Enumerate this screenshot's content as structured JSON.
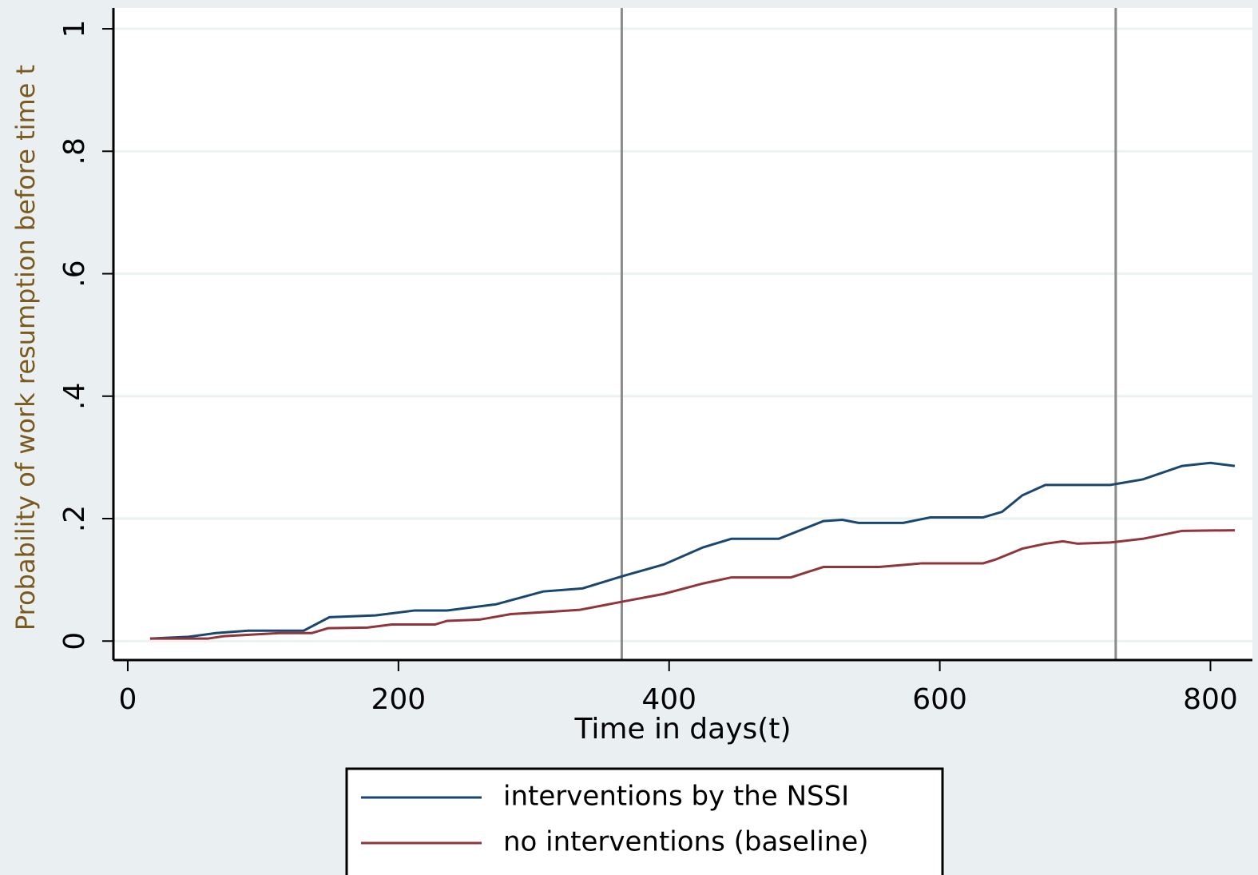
{
  "chart_data": {
    "type": "line",
    "xlabel": "Time in days(t)",
    "ylabel": "Probability of work resumption before time t",
    "xlim": [
      -10.6,
      831
    ],
    "ylim": [
      -0.031,
      1.034
    ],
    "xticks": [
      0,
      200,
      400,
      600,
      800
    ],
    "yticks": [
      0,
      {
        "value": 0.2,
        "label": ".2"
      },
      {
        "value": 0.4,
        "label": ".4"
      },
      {
        "value": 0.6,
        "label": ".6"
      },
      {
        "value": 0.8,
        "label": ".8"
      },
      1
    ],
    "xlines": [
      365,
      730
    ],
    "grid": true,
    "legend": "bottom",
    "series": [
      {
        "name": "interventions by the NSSI",
        "color": "#1a476f",
        "x": [
          16.5,
          45,
          65,
          89,
          130,
          149,
          183,
          212,
          236,
          272,
          307,
          336,
          367,
          396,
          425,
          446,
          481,
          514,
          528,
          540,
          573,
          593,
          632,
          646,
          661,
          678,
          726,
          750,
          779,
          800,
          818
        ],
        "values": [
          0.004,
          0.007,
          0.013,
          0.017,
          0.017,
          0.039,
          0.042,
          0.05,
          0.05,
          0.06,
          0.081,
          0.086,
          0.107,
          0.125,
          0.153,
          0.167,
          0.167,
          0.196,
          0.198,
          0.193,
          0.193,
          0.202,
          0.202,
          0.211,
          0.238,
          0.255,
          0.255,
          0.264,
          0.286,
          0.291,
          0.286
        ]
      },
      {
        "name": "no interventions (baseline)",
        "color": "#90353b",
        "x": [
          16.5,
          59,
          71,
          112,
          136,
          148,
          177,
          195,
          227,
          236,
          260,
          283,
          313,
          334,
          367,
          396,
          425,
          446,
          490,
          514,
          555,
          587,
          632,
          641,
          661,
          678,
          691,
          702,
          726,
          750,
          779,
          818
        ],
        "values": [
          0.004,
          0.004,
          0.008,
          0.013,
          0.013,
          0.021,
          0.022,
          0.027,
          0.027,
          0.033,
          0.035,
          0.044,
          0.048,
          0.051,
          0.065,
          0.077,
          0.094,
          0.104,
          0.104,
          0.121,
          0.121,
          0.127,
          0.127,
          0.133,
          0.151,
          0.159,
          0.163,
          0.159,
          0.161,
          0.167,
          0.18,
          0.181
        ]
      }
    ]
  }
}
